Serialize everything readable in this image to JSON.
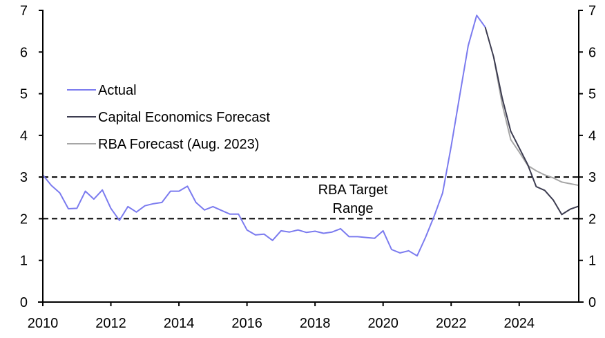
{
  "chart_data": {
    "type": "line",
    "title": "",
    "xlabel": "",
    "ylabel": "",
    "xlim": [
      2010,
      2025.75
    ],
    "ylim": [
      0,
      7
    ],
    "grid": false,
    "x_ticks": [
      2010,
      2012,
      2014,
      2016,
      2018,
      2020,
      2022,
      2024
    ],
    "x_tick_labels": [
      "2010",
      "2012",
      "2014",
      "2016",
      "2018",
      "2020",
      "2022",
      "2024"
    ],
    "y_ticks": [
      0,
      1,
      2,
      3,
      4,
      5,
      6,
      7
    ],
    "y_tick_labels": [
      "0",
      "1",
      "2",
      "3",
      "4",
      "5",
      "6",
      "7"
    ],
    "y2_tick_labels": [
      "0",
      "1",
      "2",
      "3",
      "4",
      "5",
      "6",
      "7"
    ],
    "legend_position": "left",
    "series": [
      {
        "name": "Actual",
        "color": "#7b7bef",
        "x": [
          2010,
          2010.25,
          2010.5,
          2010.75,
          2011,
          2011.25,
          2011.5,
          2011.75,
          2012,
          2012.25,
          2012.5,
          2012.75,
          2013,
          2013.25,
          2013.5,
          2013.75,
          2014,
          2014.25,
          2014.5,
          2014.75,
          2015,
          2015.25,
          2015.5,
          2015.75,
          2016,
          2016.25,
          2016.5,
          2016.75,
          2017,
          2017.25,
          2017.5,
          2017.75,
          2018,
          2018.25,
          2018.5,
          2018.75,
          2019,
          2019.25,
          2019.5,
          2019.75,
          2020,
          2020.25,
          2020.5,
          2020.75,
          2021,
          2021.25,
          2021.5,
          2021.75,
          2022,
          2022.25,
          2022.5,
          2022.75,
          2023
        ],
        "values": [
          3.05,
          2.8,
          2.62,
          2.24,
          2.25,
          2.66,
          2.47,
          2.69,
          2.25,
          1.96,
          2.29,
          2.16,
          2.31,
          2.36,
          2.39,
          2.66,
          2.66,
          2.78,
          2.39,
          2.21,
          2.29,
          2.2,
          2.11,
          2.11,
          1.73,
          1.61,
          1.63,
          1.48,
          1.71,
          1.68,
          1.73,
          1.67,
          1.7,
          1.65,
          1.68,
          1.76,
          1.57,
          1.57,
          1.55,
          1.53,
          1.71,
          1.26,
          1.18,
          1.23,
          1.11,
          1.56,
          2.06,
          2.62,
          3.73,
          4.95,
          6.15,
          6.88,
          6.6
        ]
      },
      {
        "name": "Capital Economics Forecast",
        "color": "#3c3c50",
        "x": [
          2023,
          2023.25,
          2023.5,
          2023.75,
          2024,
          2024.25,
          2024.5,
          2024.75,
          2025,
          2025.25,
          2025.5,
          2025.75
        ],
        "values": [
          6.6,
          5.88,
          4.9,
          4.1,
          3.7,
          3.3,
          2.77,
          2.68,
          2.45,
          2.1,
          2.23,
          2.3
        ]
      },
      {
        "name": "RBA Forecast (Aug. 2023)",
        "color": "#a6a6a6",
        "x": [
          2023.25,
          2023.5,
          2023.75,
          2024,
          2024.25,
          2024.5,
          2024.75,
          2025,
          2025.25,
          2025.75
        ],
        "values": [
          5.88,
          4.75,
          3.9,
          3.6,
          3.28,
          3.15,
          3.05,
          2.98,
          2.88,
          2.8
        ]
      }
    ],
    "reference_lines": [
      {
        "name": "target-upper",
        "y": 3,
        "style": "dashed",
        "color": "#000000"
      },
      {
        "name": "target-lower",
        "y": 2,
        "style": "dashed",
        "color": "#000000"
      }
    ],
    "annotations": {
      "target_line1": "RBA Target",
      "target_line2": "Range"
    }
  }
}
